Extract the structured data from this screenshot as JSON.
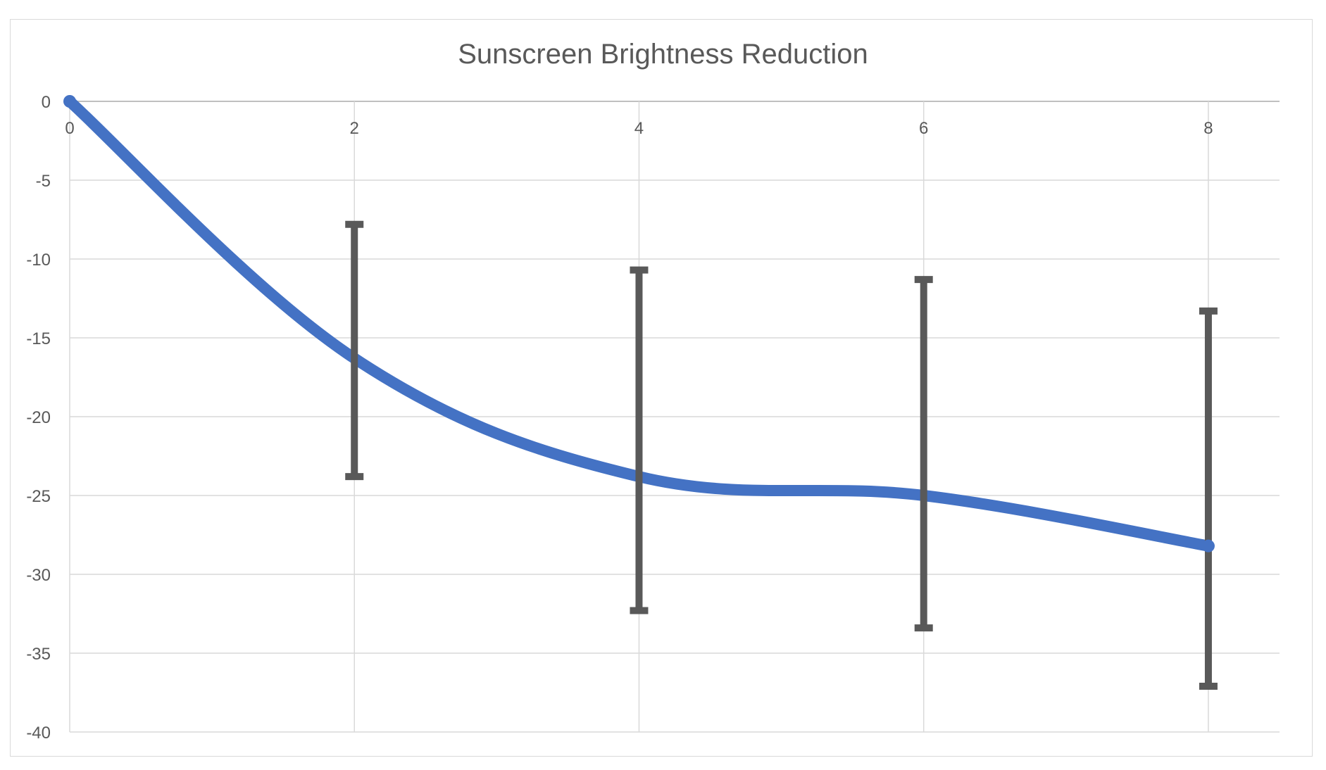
{
  "chart_data": {
    "type": "line",
    "title": "Sunscreen Brightness Reduction",
    "xlabel": "",
    "ylabel": "",
    "x": [
      0,
      2,
      4,
      6,
      8
    ],
    "series": [
      {
        "values": [
          0,
          -16.3,
          -23.8,
          -25.0,
          -28.2
        ],
        "error_upper": [
          0,
          -7.8,
          -10.7,
          -11.3,
          -13.3
        ],
        "error_lower": [
          0,
          -23.8,
          -32.3,
          -33.4,
          -37.1
        ]
      }
    ],
    "xlim": [
      0,
      8.5
    ],
    "ylim": [
      -40,
      0
    ],
    "x_ticks": [
      "0",
      "2",
      "4",
      "6",
      "8"
    ],
    "y_ticks": [
      "0",
      "-5",
      "-10",
      "-15",
      "-20",
      "-25",
      "-30",
      "-35",
      "-40"
    ],
    "grid": true,
    "smooth": true,
    "line_color": "#4472c4",
    "error_bar_color": "#595959",
    "grid_color": "#d9d9d9"
  }
}
